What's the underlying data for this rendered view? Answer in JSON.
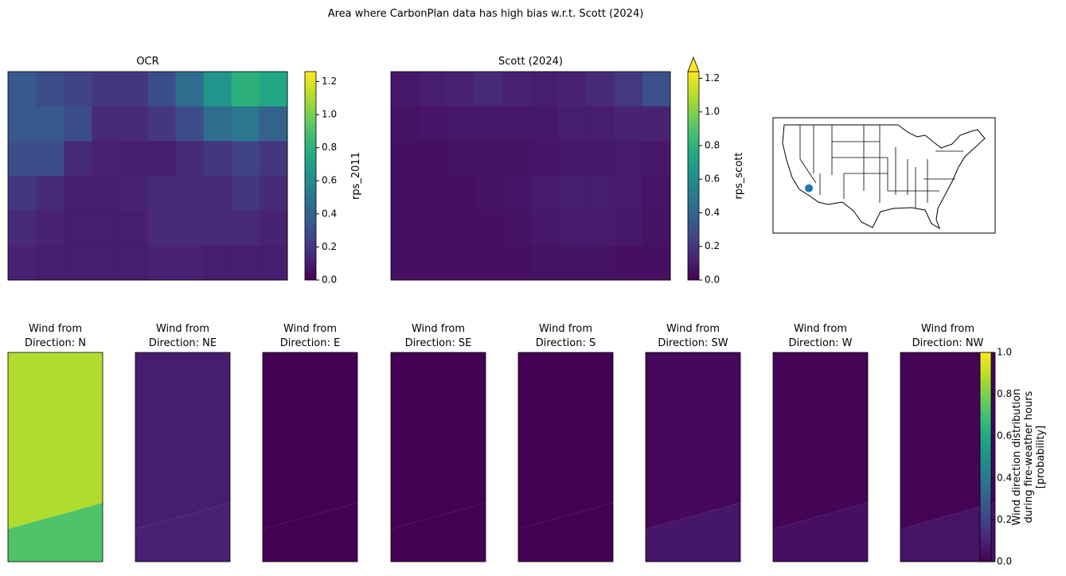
{
  "title": "Area where CarbonPlan data has high bias w.r.t. Scott (2024)",
  "chart_data": [
    {
      "type": "heatmap",
      "title": "OCR",
      "values": [
        [
          0.35,
          0.3,
          0.25,
          0.2,
          0.2,
          0.3,
          0.45,
          0.65,
          0.8,
          0.75
        ],
        [
          0.35,
          0.35,
          0.3,
          0.15,
          0.15,
          0.2,
          0.3,
          0.45,
          0.5,
          0.4
        ],
        [
          0.3,
          0.3,
          0.15,
          0.12,
          0.1,
          0.1,
          0.15,
          0.2,
          0.25,
          0.2
        ],
        [
          0.2,
          0.15,
          0.1,
          0.1,
          0.12,
          0.15,
          0.15,
          0.15,
          0.2,
          0.15
        ],
        [
          0.15,
          0.12,
          0.1,
          0.1,
          0.1,
          0.15,
          0.15,
          0.15,
          0.15,
          0.12
        ],
        [
          0.12,
          0.1,
          0.1,
          0.1,
          0.1,
          0.12,
          0.12,
          0.1,
          0.1,
          0.1
        ]
      ],
      "colorbar": {
        "label": [
          "rps_2011"
        ],
        "ylim": [
          0,
          1.26
        ],
        "extend_max": false,
        "yticks": [
          {
            "value": 0,
            "label": "0.0"
          },
          {
            "value": 0.2,
            "label": "0.2"
          },
          {
            "value": 0.4,
            "label": "0.4"
          },
          {
            "value": 0.6,
            "label": "0.6"
          },
          {
            "value": 0.8,
            "label": "0.8"
          },
          {
            "value": 1,
            "label": "1.0"
          },
          {
            "value": 1.2,
            "label": "1.2"
          }
        ]
      }
    },
    {
      "type": "heatmap",
      "title": "Scott (2024)",
      "values": [
        [
          0.08,
          0.1,
          0.12,
          0.15,
          0.12,
          0.1,
          0.12,
          0.15,
          0.2,
          0.3
        ],
        [
          0.06,
          0.07,
          0.08,
          0.08,
          0.08,
          0.08,
          0.1,
          0.1,
          0.12,
          0.12
        ],
        [
          0.05,
          0.05,
          0.06,
          0.06,
          0.06,
          0.07,
          0.08,
          0.08,
          0.09,
          0.08
        ],
        [
          0.05,
          0.05,
          0.05,
          0.06,
          0.07,
          0.09,
          0.1,
          0.1,
          0.09,
          0.07
        ],
        [
          0.05,
          0.05,
          0.05,
          0.05,
          0.06,
          0.08,
          0.09,
          0.09,
          0.08,
          0.06
        ],
        [
          0.05,
          0.05,
          0.05,
          0.05,
          0.05,
          0.06,
          0.06,
          0.06,
          0.05,
          0.05
        ]
      ],
      "colorbar": {
        "label": [
          "rps_scott"
        ],
        "ylim": [
          0,
          1.24
        ],
        "extend_max": true,
        "yticks": [
          {
            "value": 0,
            "label": "0.0"
          },
          {
            "value": 0.2,
            "label": "0.2"
          },
          {
            "value": 0.4,
            "label": "0.4"
          },
          {
            "value": 0.6,
            "label": "0.6"
          },
          {
            "value": 0.8,
            "label": "0.8"
          },
          {
            "value": 1,
            "label": "1.0"
          },
          {
            "value": 1.2,
            "label": "1.2"
          }
        ]
      }
    },
    {
      "type": "map",
      "xlim": [
        -127.4,
        -64.3
      ],
      "ylim": [
        24.9,
        50.6
      ],
      "color": "#1f77b4",
      "point": {
        "lon": -117.2,
        "lat": 34.9
      }
    },
    {
      "type": "wind",
      "panels": [
        {
          "title": [
            "Wind from",
            "Direction: N"
          ],
          "values": [
            0.88,
            0.72
          ]
        },
        {
          "title": [
            "Wind from",
            "Direction: NE"
          ],
          "values": [
            0.08,
            0.09
          ]
        },
        {
          "title": [
            "Wind from",
            "Direction: E"
          ],
          "values": [
            0,
            0
          ]
        },
        {
          "title": [
            "Wind from",
            "Direction: SE"
          ],
          "values": [
            0,
            0
          ]
        },
        {
          "title": [
            "Wind from",
            "Direction: S"
          ],
          "values": [
            0,
            0
          ]
        },
        {
          "title": [
            "Wind from",
            "Direction: SW"
          ],
          "values": [
            0.02,
            0.06
          ]
        },
        {
          "title": [
            "Wind from",
            "Direction: W"
          ],
          "values": [
            0.01,
            0.04
          ]
        },
        {
          "title": [
            "Wind from",
            "Direction: NW"
          ],
          "values": [
            0.01,
            0.05
          ]
        }
      ],
      "colorbar": {
        "label": [
          "Wind direction distribution",
          "during fire-weather hours",
          "[probability]"
        ],
        "ylim": [
          0,
          1
        ],
        "extend_max": false,
        "yticks": [
          {
            "value": 0,
            "label": "0.0"
          },
          {
            "value": 0.2,
            "label": "0.2"
          },
          {
            "value": 0.4,
            "label": "0.4"
          },
          {
            "value": 0.6,
            "label": "0.6"
          },
          {
            "value": 0.8,
            "label": "0.8"
          },
          {
            "value": 1,
            "label": "1.0"
          }
        ]
      }
    }
  ]
}
